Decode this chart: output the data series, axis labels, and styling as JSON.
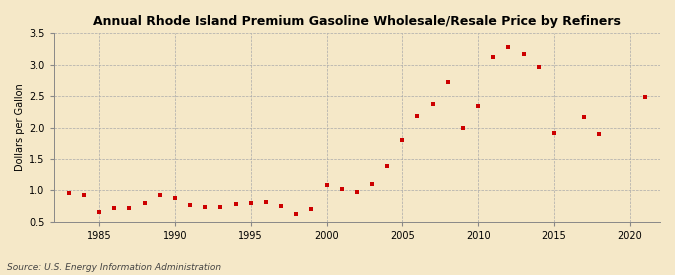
{
  "title": "Annual Rhode Island Premium Gasoline Wholesale/Resale Price by Refiners",
  "ylabel": "Dollars per Gallon",
  "source": "Source: U.S. Energy Information Administration",
  "background_color": "#f5e8c8",
  "marker_color": "#cc0000",
  "years": [
    1983,
    1984,
    1985,
    1986,
    1987,
    1988,
    1989,
    1990,
    1991,
    1992,
    1993,
    1994,
    1995,
    1996,
    1997,
    1998,
    1999,
    2000,
    2001,
    2002,
    2003,
    2004,
    2005,
    2006,
    2007,
    2008,
    2009,
    2010,
    2011,
    2012,
    2013,
    2014,
    2015,
    2017,
    2018,
    2021
  ],
  "values": [
    0.95,
    0.92,
    0.65,
    0.72,
    0.72,
    0.8,
    0.92,
    0.87,
    0.77,
    0.73,
    0.73,
    0.78,
    0.8,
    0.82,
    0.75,
    0.63,
    0.7,
    1.08,
    1.02,
    0.97,
    1.1,
    1.39,
    1.8,
    2.18,
    2.38,
    2.72,
    2.0,
    2.34,
    3.12,
    3.28,
    3.17,
    2.97,
    1.91,
    2.16,
    1.9,
    2.49
  ],
  "ylim": [
    0.5,
    3.5
  ],
  "xlim": [
    1982,
    2022
  ],
  "yticks": [
    0.5,
    1.0,
    1.5,
    2.0,
    2.5,
    3.0,
    3.5
  ],
  "xticks": [
    1985,
    1990,
    1995,
    2000,
    2005,
    2010,
    2015,
    2020
  ],
  "title_fontsize": 9,
  "ylabel_fontsize": 7,
  "tick_fontsize": 7,
  "source_fontsize": 6.5,
  "marker_size": 12,
  "grid_color": "#aaaaaa",
  "spine_color": "#888888"
}
